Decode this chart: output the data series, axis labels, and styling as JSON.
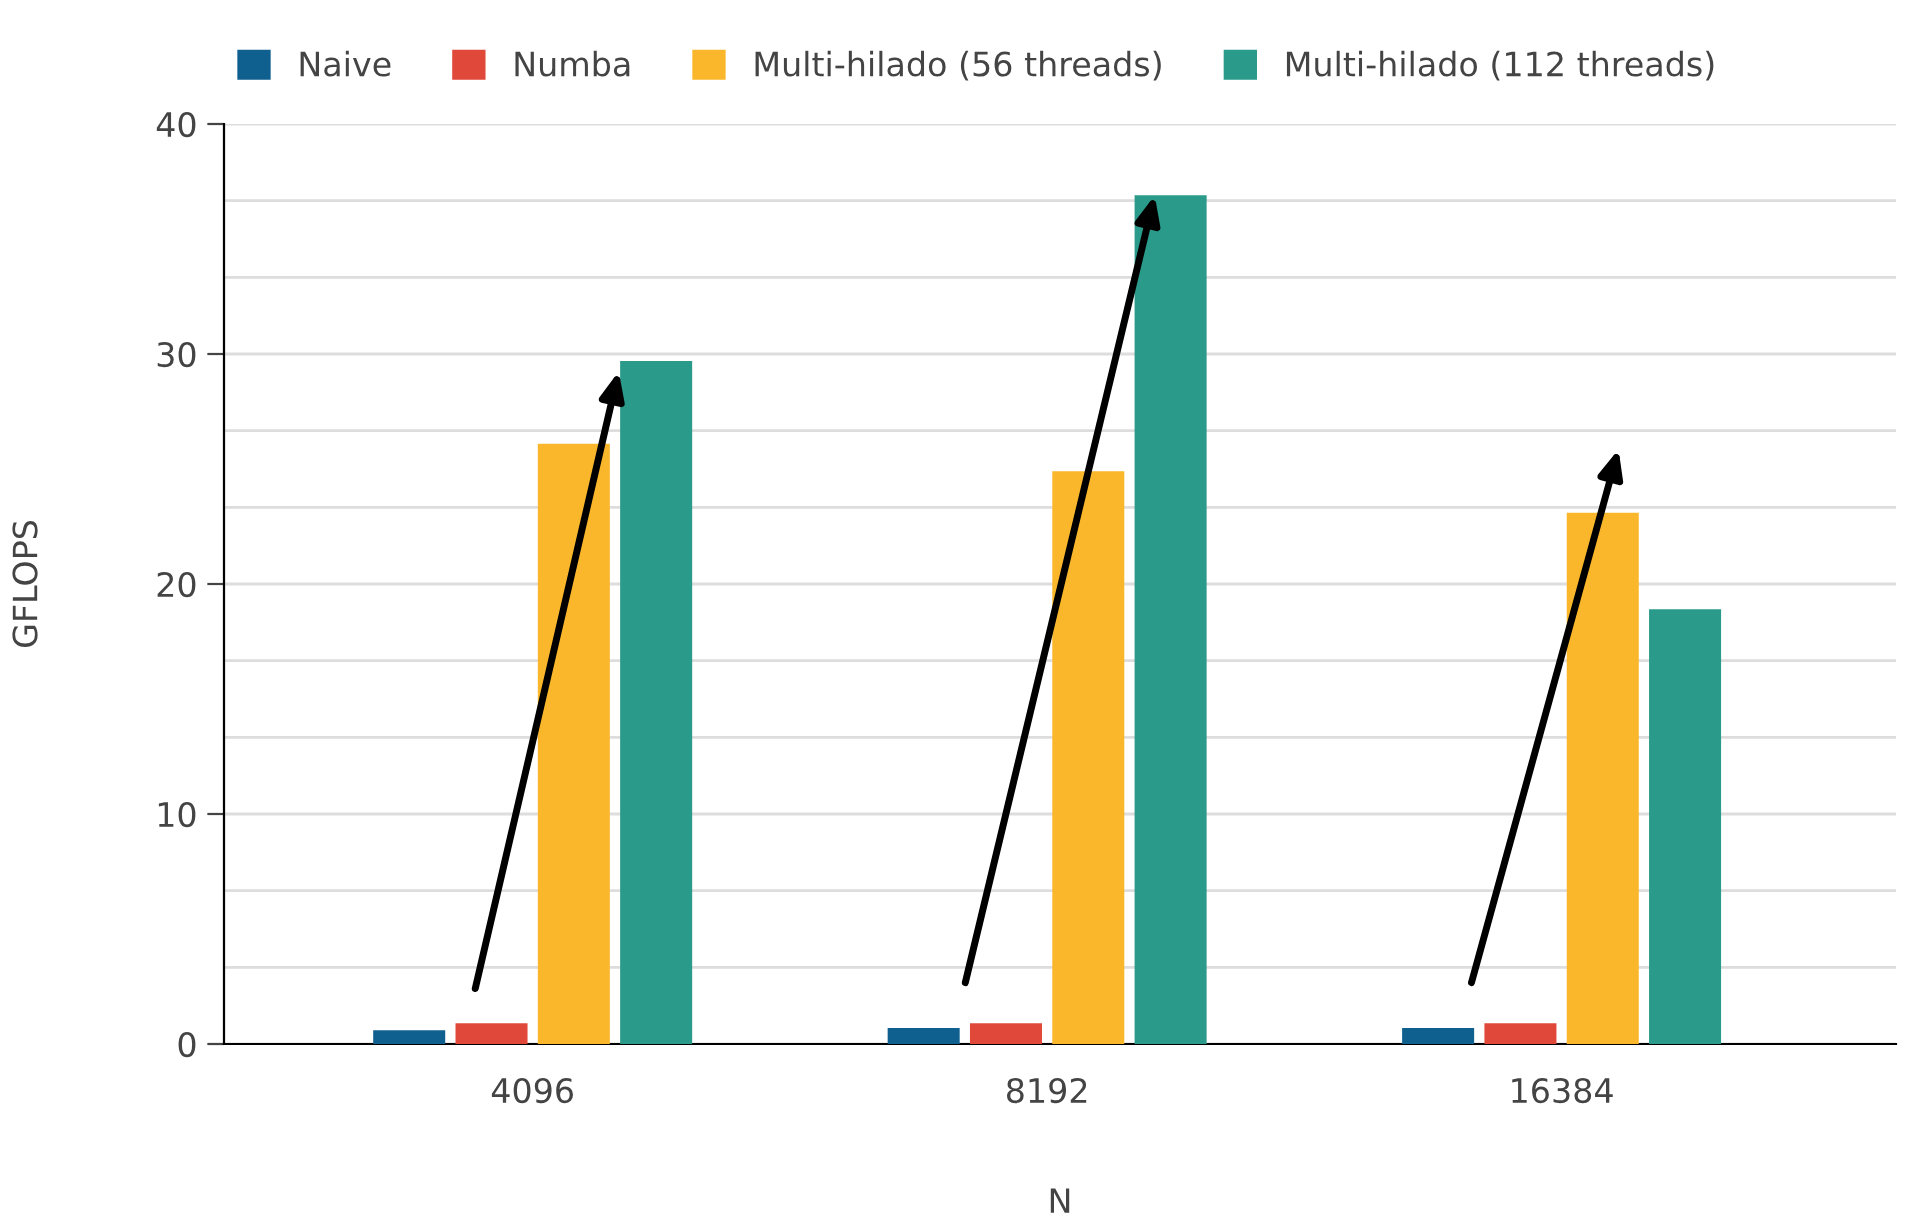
{
  "chart_data": {
    "type": "bar",
    "xlabel": "N",
    "ylabel": "GFLOPS",
    "categories": [
      "4096",
      "8192",
      "16384"
    ],
    "series": [
      {
        "name": "Naive",
        "color": "#0f5f8f",
        "values": [
          0.6,
          0.7,
          0.7
        ]
      },
      {
        "name": "Numba",
        "color": "#e0493a",
        "values": [
          0.9,
          0.9,
          0.9
        ]
      },
      {
        "name": "Multi-hilado (56 threads)",
        "color": "#fbb72b",
        "values": [
          26.1,
          24.9,
          23.1
        ]
      },
      {
        "name": "Multi-hilado (112 threads)",
        "color": "#2a9a8a",
        "values": [
          29.7,
          36.9,
          18.9
        ]
      }
    ],
    "ylim": [
      0,
      40
    ],
    "yticks": [
      0,
      {
        "value": 3.33,
        "label": null
      },
      {
        "value": 6.67,
        "label": null
      },
      10,
      {
        "value": 13.33,
        "label": null
      },
      {
        "value": 16.67,
        "label": null
      },
      20,
      {
        "value": 23.33,
        "label": null
      },
      {
        "value": 26.67,
        "label": null
      },
      30,
      {
        "value": 33.33,
        "label": null
      },
      {
        "value": 36.67,
        "label": null
      },
      40
    ],
    "grid": "y",
    "legend": "top left"
  }
}
